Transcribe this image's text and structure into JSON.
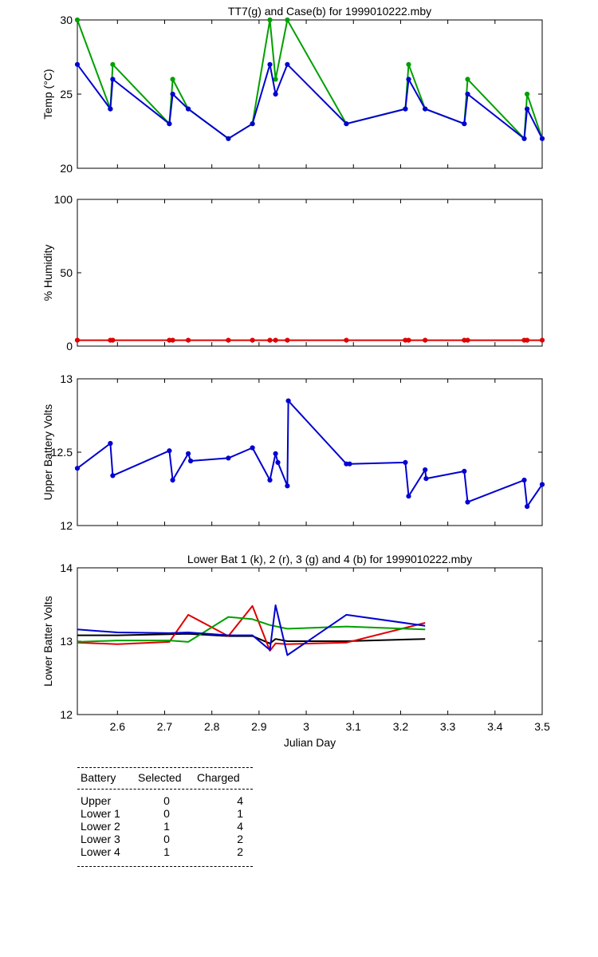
{
  "chart_data": [
    {
      "type": "line",
      "title": "TT7(g) and Case(b) for 1999010222.mby",
      "ylabel": "Temp (°C)",
      "xlabel": "",
      "xlim": [
        2.515,
        3.5
      ],
      "ylim": [
        20,
        30
      ],
      "yticks": [
        20,
        25,
        30
      ],
      "series": [
        {
          "name": "TT7",
          "color": "#00a000",
          "x": [
            2.515,
            2.585,
            2.59,
            2.71,
            2.717,
            2.75,
            2.835,
            2.886,
            2.923,
            2.935,
            2.96,
            3.085,
            3.21,
            3.217,
            3.252,
            3.335,
            3.342,
            3.462,
            3.468,
            3.5
          ],
          "y": [
            30,
            24,
            27,
            23,
            26,
            24,
            22,
            23,
            30,
            26,
            30,
            23,
            24,
            27,
            24,
            23,
            26,
            22,
            25,
            22
          ]
        },
        {
          "name": "Case",
          "color": "#0000d0",
          "x": [
            2.515,
            2.585,
            2.59,
            2.71,
            2.717,
            2.75,
            2.835,
            2.886,
            2.923,
            2.935,
            2.96,
            3.085,
            3.21,
            3.217,
            3.252,
            3.335,
            3.342,
            3.462,
            3.468,
            3.5
          ],
          "y": [
            27,
            24,
            26,
            23,
            25,
            24,
            22,
            23,
            27,
            25,
            27,
            23,
            24,
            26,
            24,
            23,
            25,
            22,
            24,
            22
          ]
        }
      ]
    },
    {
      "type": "line",
      "title": "",
      "ylabel": "% Humidity",
      "xlabel": "",
      "xlim": [
        2.515,
        3.5
      ],
      "ylim": [
        0,
        100
      ],
      "yticks": [
        0,
        50,
        100
      ],
      "series": [
        {
          "name": "",
          "color": "#e00000",
          "x": [
            2.515,
            2.585,
            2.59,
            2.71,
            2.717,
            2.75,
            2.835,
            2.886,
            2.923,
            2.935,
            2.96,
            3.085,
            3.21,
            3.217,
            3.252,
            3.335,
            3.342,
            3.462,
            3.468,
            3.5
          ],
          "y": [
            4,
            4,
            4,
            4,
            4,
            4,
            4,
            4,
            4,
            4,
            4,
            4,
            4,
            4,
            4,
            4,
            4,
            4,
            4,
            4
          ]
        }
      ]
    },
    {
      "type": "line",
      "title": "",
      "ylabel": "Upper Battery Volts",
      "xlabel": "",
      "xlim": [
        2.515,
        3.5
      ],
      "ylim": [
        12,
        13
      ],
      "yticks": [
        12,
        12.5,
        13
      ],
      "series": [
        {
          "name": "",
          "color": "#0000d0",
          "x": [
            2.515,
            2.585,
            2.59,
            2.71,
            2.717,
            2.75,
            2.755,
            2.835,
            2.886,
            2.923,
            2.935,
            2.94,
            2.96,
            2.962,
            3.085,
            3.092,
            3.21,
            3.217,
            3.252,
            3.254,
            3.335,
            3.342,
            3.462,
            3.468,
            3.5
          ],
          "y": [
            12.39,
            12.56,
            12.34,
            12.51,
            12.31,
            12.49,
            12.44,
            12.46,
            12.53,
            12.31,
            12.49,
            12.43,
            12.27,
            12.85,
            12.42,
            12.42,
            12.43,
            12.2,
            12.38,
            12.32,
            12.37,
            12.16,
            12.31,
            12.13,
            12.28
          ]
        }
      ]
    },
    {
      "type": "line",
      "title": "Lower Bat 1 (k), 2 (r), 3 (g) and 4 (b) for 1999010222.mby",
      "ylabel": "Lower Batter Volts",
      "xlabel": "Julian Day",
      "xlim": [
        2.515,
        3.5
      ],
      "ylim": [
        12,
        14
      ],
      "yticks": [
        12,
        13,
        14
      ],
      "xticks": [
        2.6,
        2.7,
        2.8,
        2.9,
        3,
        3.1,
        3.2,
        3.3,
        3.4,
        3.5
      ],
      "series": [
        {
          "name": "1",
          "color": "#000000",
          "x": [
            2.515,
            2.6,
            2.75,
            2.835,
            2.886,
            2.923,
            2.935,
            2.96,
            3.085,
            3.252
          ],
          "y": [
            13.08,
            13.08,
            13.1,
            13.07,
            13.07,
            12.97,
            13.03,
            13.0,
            13.0,
            13.03
          ]
        },
        {
          "name": "2",
          "color": "#e00000",
          "x": [
            2.515,
            2.6,
            2.71,
            2.75,
            2.835,
            2.886,
            2.923,
            2.935,
            2.96,
            3.085,
            3.252
          ],
          "y": [
            12.98,
            12.96,
            12.99,
            13.36,
            13.07,
            13.48,
            12.87,
            12.97,
            12.96,
            12.98,
            13.25
          ]
        },
        {
          "name": "3",
          "color": "#00a000",
          "x": [
            2.515,
            2.6,
            2.71,
            2.75,
            2.835,
            2.886,
            2.923,
            2.96,
            3.085,
            3.252
          ],
          "y": [
            12.99,
            13.01,
            13.01,
            12.99,
            13.33,
            13.3,
            13.22,
            13.17,
            13.2,
            13.16
          ]
        },
        {
          "name": "4",
          "color": "#0000d0",
          "x": [
            2.515,
            2.6,
            2.71,
            2.75,
            2.835,
            2.886,
            2.923,
            2.935,
            2.96,
            3.085,
            3.252
          ],
          "y": [
            13.16,
            13.12,
            13.11,
            13.12,
            13.08,
            13.08,
            12.88,
            13.49,
            12.81,
            13.36,
            13.21
          ]
        }
      ]
    }
  ],
  "table": {
    "headers": [
      "Battery",
      "Selected",
      "Charged"
    ],
    "rows": [
      [
        "Upper",
        "0",
        "4"
      ],
      [
        "Lower 1",
        "0",
        "1"
      ],
      [
        "Lower 2",
        "1",
        "4"
      ],
      [
        "Lower 3",
        "0",
        "2"
      ],
      [
        "Lower 4",
        "1",
        "2"
      ]
    ]
  }
}
